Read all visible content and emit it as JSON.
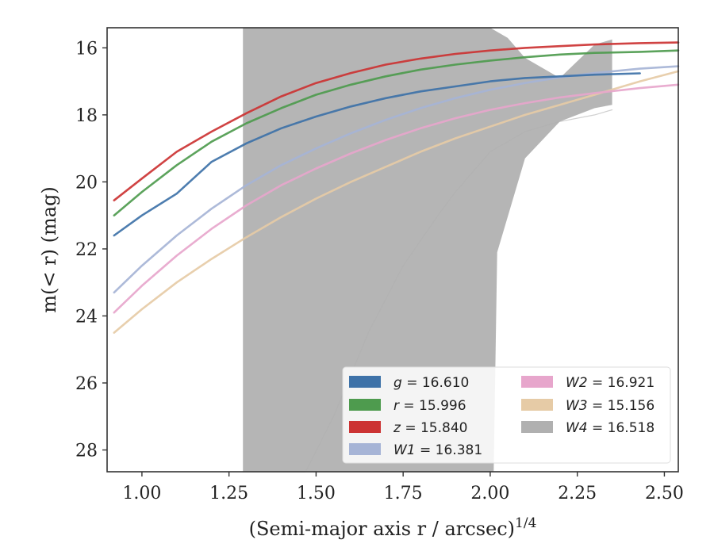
{
  "chart_data": {
    "type": "line",
    "xlabel": "(Semi-major axis r / arcsec)",
    "xlabel_sup": "1/4",
    "ylabel": "m(< r) (mag)",
    "xlim": [
      0.9,
      2.54
    ],
    "ylim": [
      28.65,
      15.4
    ],
    "y_inverted": true,
    "grid": false,
    "legend_placement": "lower-right",
    "x_ticks": [
      "1.00",
      "1.25",
      "1.50",
      "1.75",
      "2.00",
      "2.25",
      "2.50"
    ],
    "y_ticks": [
      "16",
      "18",
      "20",
      "22",
      "24",
      "26",
      "28"
    ],
    "series": [
      {
        "name": "g = 16.610",
        "legend": {
          "symbol": "g",
          "value": "16.610"
        },
        "color": "#3e72a8",
        "x": [
          0.92,
          1.0,
          1.1,
          1.2,
          1.3,
          1.4,
          1.5,
          1.6,
          1.7,
          1.8,
          1.9,
          2.0,
          2.1,
          2.2,
          2.3,
          2.43
        ],
        "y": [
          21.6,
          21.0,
          20.35,
          19.4,
          18.85,
          18.4,
          18.05,
          17.75,
          17.5,
          17.3,
          17.15,
          17.0,
          16.9,
          16.85,
          16.8,
          16.76
        ]
      },
      {
        "name": "r = 15.996",
        "legend": {
          "symbol": "r",
          "value": "15.996"
        },
        "color": "#4e9b4e",
        "x": [
          0.92,
          1.0,
          1.1,
          1.2,
          1.3,
          1.4,
          1.5,
          1.6,
          1.7,
          1.8,
          1.9,
          2.0,
          2.1,
          2.2,
          2.3,
          2.43,
          2.54
        ],
        "y": [
          21.0,
          20.3,
          19.5,
          18.8,
          18.25,
          17.8,
          17.4,
          17.1,
          16.85,
          16.65,
          16.5,
          16.38,
          16.28,
          16.2,
          16.15,
          16.12,
          16.08
        ]
      },
      {
        "name": "z = 15.840",
        "legend": {
          "symbol": "z",
          "value": "15.840"
        },
        "color": "#cc3333",
        "x": [
          0.92,
          1.0,
          1.1,
          1.2,
          1.3,
          1.4,
          1.5,
          1.6,
          1.7,
          1.8,
          1.9,
          2.0,
          2.1,
          2.2,
          2.3,
          2.43,
          2.54
        ],
        "y": [
          20.55,
          19.9,
          19.1,
          18.5,
          17.95,
          17.45,
          17.05,
          16.75,
          16.5,
          16.32,
          16.18,
          16.08,
          16.0,
          15.95,
          15.9,
          15.86,
          15.84
        ]
      },
      {
        "name": "W1 = 16.381",
        "legend": {
          "symbol": "W1",
          "value": "16.381"
        },
        "color": "#a6b4d6",
        "x": [
          0.92,
          1.0,
          1.1,
          1.2,
          1.3,
          1.4,
          1.5,
          1.6,
          1.7,
          1.8,
          1.9,
          2.0,
          2.1,
          2.2,
          2.3,
          2.43,
          2.54
        ],
        "y": [
          23.3,
          22.5,
          21.6,
          20.8,
          20.1,
          19.5,
          19.0,
          18.55,
          18.15,
          17.8,
          17.5,
          17.25,
          17.05,
          16.88,
          16.75,
          16.62,
          16.55
        ]
      },
      {
        "name": "W2 = 16.921",
        "legend": {
          "symbol": "W2",
          "value": "16.921"
        },
        "color": "#e7a6cc",
        "x": [
          0.92,
          1.0,
          1.1,
          1.2,
          1.3,
          1.4,
          1.5,
          1.6,
          1.7,
          1.8,
          1.9,
          2.0,
          2.1,
          2.2,
          2.3,
          2.43,
          2.54
        ],
        "y": [
          23.9,
          23.1,
          22.2,
          21.4,
          20.7,
          20.1,
          19.6,
          19.15,
          18.75,
          18.4,
          18.1,
          17.85,
          17.65,
          17.48,
          17.35,
          17.2,
          17.1
        ]
      },
      {
        "name": "W3 = 15.156",
        "legend": {
          "symbol": "W3",
          "value": "15.156"
        },
        "color": "#e6cba6",
        "x": [
          0.92,
          1.0,
          1.1,
          1.2,
          1.3,
          1.4,
          1.5,
          1.6,
          1.7,
          1.8,
          1.9,
          2.0,
          2.1,
          2.2,
          2.3,
          2.43,
          2.54
        ],
        "y": [
          24.5,
          23.8,
          23.0,
          22.3,
          21.65,
          21.05,
          20.5,
          20.0,
          19.55,
          19.1,
          18.7,
          18.35,
          18.0,
          17.7,
          17.4,
          17.0,
          16.7
        ]
      },
      {
        "name": "W4 = 16.518",
        "legend": {
          "symbol": "W4",
          "value": "16.518"
        },
        "color": "#b0b0b0",
        "x": [
          1.29,
          1.35,
          1.47,
          1.55,
          1.65,
          1.75,
          1.85,
          1.9,
          1.95,
          2.0,
          2.1,
          2.2,
          2.3,
          2.35
        ],
        "y": [
          28.65,
          28.65,
          28.65,
          27.0,
          24.5,
          22.5,
          21.0,
          20.3,
          19.7,
          19.1,
          18.5,
          18.2,
          18.0,
          17.85
        ]
      }
    ],
    "w4_band": {
      "upper": {
        "x": [
          1.29,
          1.35,
          1.45,
          1.55,
          1.65,
          1.75,
          1.85,
          1.95,
          2.0,
          2.05,
          2.1,
          2.2,
          2.3,
          2.35
        ],
        "y": [
          15.4,
          15.4,
          15.4,
          15.4,
          15.4,
          15.4,
          15.4,
          15.4,
          15.4,
          15.7,
          16.3,
          16.9,
          15.9,
          15.75
        ]
      },
      "lower": {
        "x": [
          1.29,
          1.35,
          1.45,
          1.55,
          1.65,
          1.75,
          1.85,
          1.95,
          2.01,
          2.02,
          2.1,
          2.2,
          2.3,
          2.35
        ],
        "y": [
          28.65,
          28.65,
          28.65,
          28.65,
          28.65,
          28.65,
          28.65,
          28.65,
          28.65,
          22.1,
          19.3,
          18.2,
          17.8,
          17.7
        ]
      }
    },
    "legend_columns": [
      [
        "g = 16.610",
        "r = 15.996",
        "z = 15.840",
        "W1 = 16.381"
      ],
      [
        "W2 = 16.921",
        "W3 = 15.156",
        "W4 = 16.518"
      ]
    ]
  }
}
